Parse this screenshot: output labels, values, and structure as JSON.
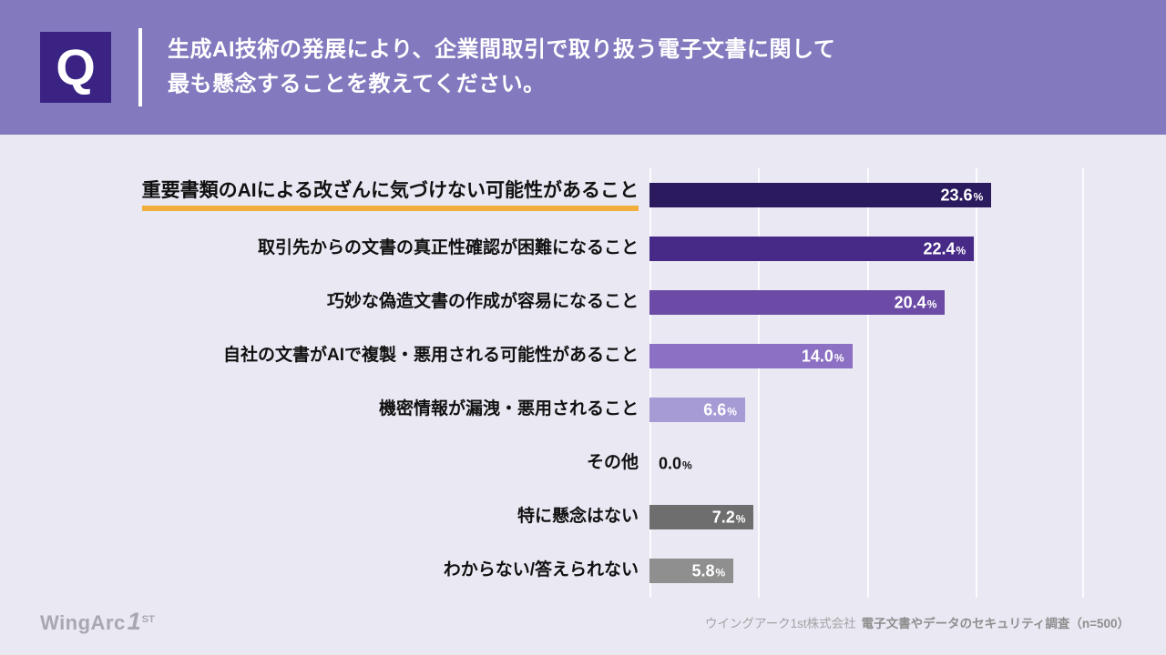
{
  "header": {
    "q_mark": "Q",
    "title_line1": "生成AI技術の発展により、企業間取引で取り扱う電子文書に関して",
    "title_line2": "最も懸念することを教えてください。"
  },
  "chart_data": {
    "type": "bar",
    "orientation": "horizontal",
    "unit": "%",
    "axis_max": 30,
    "gridline_interval_pct": 7.5,
    "legend": "none",
    "categories": [
      "重要書類のAIによる改ざんに気づけない可能性があること",
      "取引先からの文書の真正性確認が困難になること",
      "巧妙な偽造文書の作成が容易になること",
      "自社の文書がAIで複製・悪用される可能性があること",
      "機密情報が漏洩・悪用されること",
      "その他",
      "特に懸念はない",
      "わからない/答えられない"
    ],
    "values": [
      23.6,
      22.4,
      20.4,
      14.0,
      6.6,
      0.0,
      7.2,
      5.8
    ],
    "rows": [
      {
        "label": "重要書類のAIによる改ざんに気づけない可能性があること",
        "value": 23.6,
        "value_label": "23.6",
        "color": "#2B1A5E",
        "highlighted": true
      },
      {
        "label": "取引先からの文書の真正性確認が困難になること",
        "value": 22.4,
        "value_label": "22.4",
        "color": "#472A87",
        "highlighted": false
      },
      {
        "label": "巧妙な偽造文書の作成が容易になること",
        "value": 20.4,
        "value_label": "20.4",
        "color": "#6C4BA6",
        "highlighted": false
      },
      {
        "label": "自社の文書がAIで複製・悪用される可能性があること",
        "value": 14.0,
        "value_label": "14.0",
        "color": "#8C70C3",
        "highlighted": false
      },
      {
        "label": "機密情報が漏洩・悪用されること",
        "value": 6.6,
        "value_label": "6.6",
        "color": "#A79BD5",
        "highlighted": false
      },
      {
        "label": "その他",
        "value": 0.0,
        "value_label": "0.0",
        "color": "",
        "highlighted": false
      },
      {
        "label": "特に懸念はない",
        "value": 7.2,
        "value_label": "7.2",
        "color": "#6E6E6E",
        "highlighted": false
      },
      {
        "label": "わからない/答えられない",
        "value": 5.8,
        "value_label": "5.8",
        "color": "#8F8F8F",
        "highlighted": false
      }
    ],
    "colors": {
      "header_bg": "#8279BE",
      "q_box_bg": "#3A2383",
      "page_bg": "#EAE8F3",
      "highlight_underline": "#F2AE3C",
      "gridline": "#FFFFFF"
    }
  },
  "footer": {
    "logo_main": "WingArc",
    "logo_one": "1",
    "logo_st": "ST",
    "source_left": "ウイングアーク1st株式会社",
    "source_right": "電子文書やデータのセキュリティ調査（n=500）"
  }
}
